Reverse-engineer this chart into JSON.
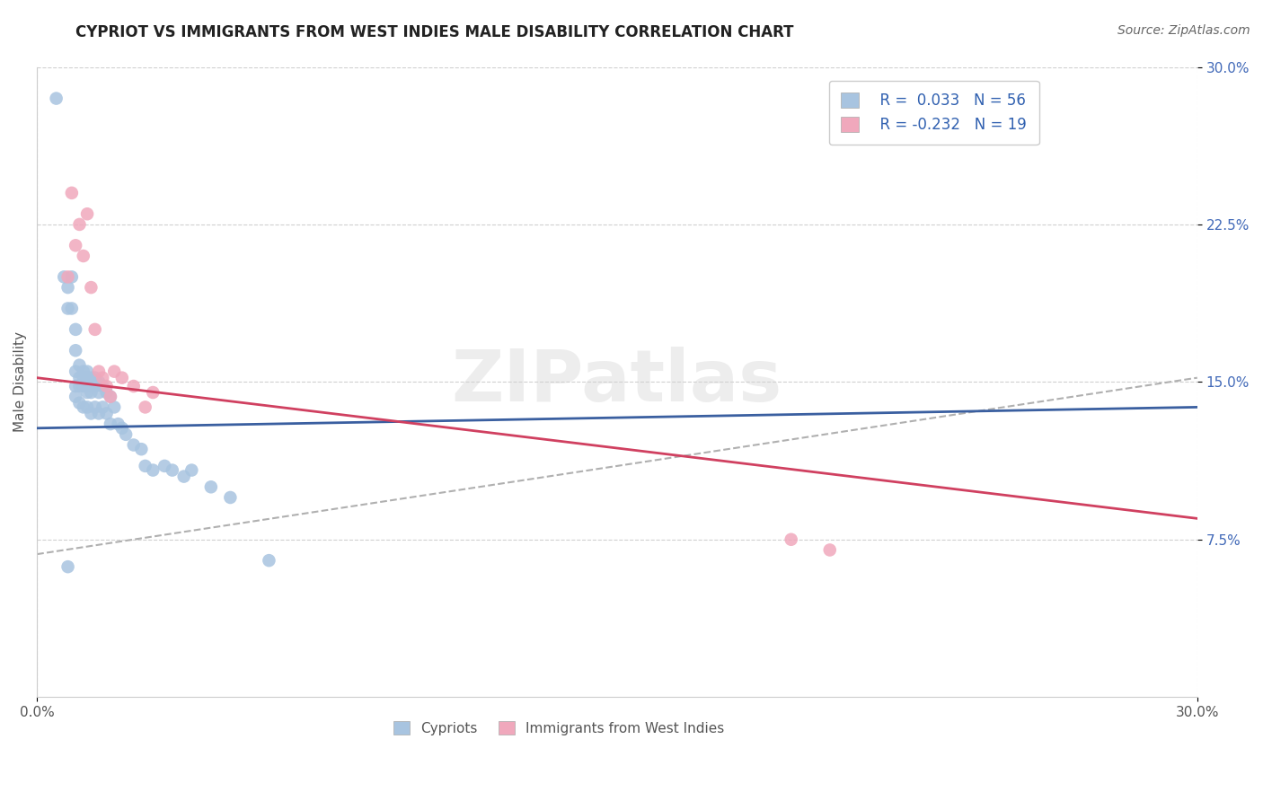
{
  "title": "CYPRIOT VS IMMIGRANTS FROM WEST INDIES MALE DISABILITY CORRELATION CHART",
  "source": "Source: ZipAtlas.com",
  "ylabel": "Male Disability",
  "watermark": "ZIPatlas",
  "xlim": [
    0.0,
    0.3
  ],
  "ylim": [
    0.0,
    0.3
  ],
  "ytick_values": [
    0.075,
    0.15,
    0.225,
    0.3
  ],
  "xtick_values": [
    0.0,
    0.3
  ],
  "grid_color": "#d0d0d0",
  "cypriot_color": "#a8c4e0",
  "west_indies_color": "#f0a8bc",
  "cypriot_line_color": "#3a5fa0",
  "west_indies_line_color": "#d04060",
  "trend_line_color": "#b0b0b0",
  "legend_R1": "R =  0.033",
  "legend_N1": "N = 56",
  "legend_R2": "R = -0.232",
  "legend_N2": "N = 19",
  "cypriot_x": [
    0.005,
    0.007,
    0.008,
    0.008,
    0.009,
    0.009,
    0.01,
    0.01,
    0.01,
    0.01,
    0.01,
    0.011,
    0.011,
    0.011,
    0.011,
    0.012,
    0.012,
    0.012,
    0.012,
    0.013,
    0.013,
    0.013,
    0.013,
    0.013,
    0.014,
    0.014,
    0.014,
    0.014,
    0.015,
    0.015,
    0.015,
    0.016,
    0.016,
    0.016,
    0.017,
    0.017,
    0.018,
    0.018,
    0.019,
    0.019,
    0.02,
    0.021,
    0.022,
    0.023,
    0.025,
    0.027,
    0.028,
    0.03,
    0.033,
    0.035,
    0.038,
    0.04,
    0.045,
    0.05,
    0.06,
    0.008
  ],
  "cypriot_y": [
    0.285,
    0.2,
    0.195,
    0.185,
    0.2,
    0.185,
    0.175,
    0.165,
    0.155,
    0.148,
    0.143,
    0.158,
    0.152,
    0.148,
    0.14,
    0.155,
    0.152,
    0.148,
    0.138,
    0.155,
    0.152,
    0.148,
    0.145,
    0.138,
    0.152,
    0.148,
    0.145,
    0.135,
    0.152,
    0.148,
    0.138,
    0.15,
    0.145,
    0.135,
    0.148,
    0.138,
    0.145,
    0.135,
    0.143,
    0.13,
    0.138,
    0.13,
    0.128,
    0.125,
    0.12,
    0.118,
    0.11,
    0.108,
    0.11,
    0.108,
    0.105,
    0.108,
    0.1,
    0.095,
    0.065,
    0.062
  ],
  "west_indies_x": [
    0.008,
    0.009,
    0.01,
    0.011,
    0.012,
    0.013,
    0.014,
    0.015,
    0.016,
    0.017,
    0.018,
    0.019,
    0.02,
    0.022,
    0.025,
    0.028,
    0.03,
    0.195,
    0.205
  ],
  "west_indies_y": [
    0.2,
    0.24,
    0.215,
    0.225,
    0.21,
    0.23,
    0.195,
    0.175,
    0.155,
    0.152,
    0.148,
    0.143,
    0.155,
    0.152,
    0.148,
    0.138,
    0.145,
    0.075,
    0.07
  ],
  "cypriot_trend_x": [
    0.0,
    0.3
  ],
  "cypriot_trend_y": [
    0.128,
    0.138
  ],
  "west_indies_trend_x": [
    0.0,
    0.3
  ],
  "west_indies_trend_y": [
    0.152,
    0.085
  ],
  "dashed_trend_x": [
    0.0,
    0.3
  ],
  "dashed_trend_y": [
    0.068,
    0.152
  ]
}
